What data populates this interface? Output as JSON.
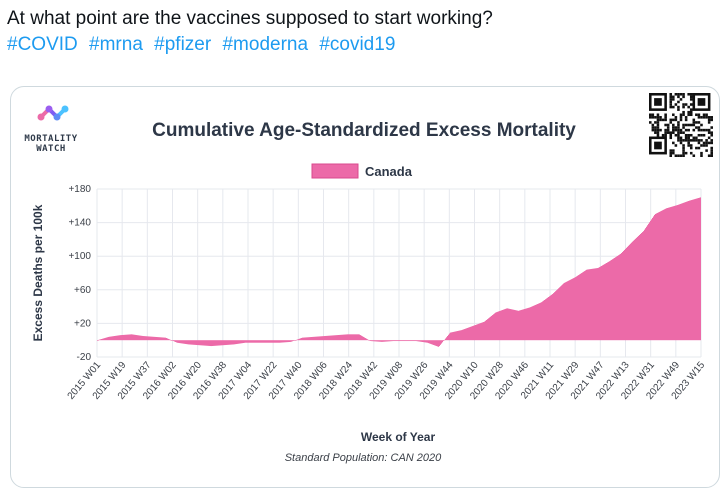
{
  "tweet": {
    "text": "At what point are the vaccines supposed to start working?",
    "hashtags": [
      "#COVID",
      "#mrna",
      "#pfizer",
      "#moderna",
      "#covid19"
    ]
  },
  "logo": {
    "line1": "MORTALITY",
    "line2": "WATCH"
  },
  "colors": {
    "series": "#ec6aa8",
    "series_stroke": "#d94a8e",
    "grid": "#e6e8ee",
    "text": "#2d3747",
    "link": "#1d9bf0"
  },
  "chart_data": {
    "type": "area",
    "title": "Cumulative Age-Standardized Excess Mortality",
    "legend": [
      "Canada"
    ],
    "legend_position": "top-center",
    "xlabel": "Week of Year",
    "ylabel": "Excess Deaths per 100k",
    "caption": "Standard Population: CAN 2020",
    "ylim": [
      -20,
      180
    ],
    "yticks": [
      -20,
      20,
      60,
      100,
      140,
      180
    ],
    "ytick_labels": [
      "-20",
      "+20",
      "+60",
      "+100",
      "+140",
      "+180"
    ],
    "x_tick_labels": [
      "2015 W01",
      "2015 W19",
      "2015 W37",
      "2016 W02",
      "2016 W20",
      "2016 W38",
      "2017 W04",
      "2017 W22",
      "2017 W40",
      "2018 W06",
      "2018 W24",
      "2018 W42",
      "2019 W08",
      "2019 W26",
      "2019 W44",
      "2020 W10",
      "2020 W28",
      "2020 W46",
      "2021 W11",
      "2021 W29",
      "2021 W47",
      "2022 W13",
      "2022 W31",
      "2022 W49",
      "2023 W15"
    ],
    "series": [
      {
        "name": "Canada",
        "values": [
          0,
          4,
          6,
          7,
          5,
          4,
          3,
          -3,
          -5,
          -6,
          -7,
          -6,
          -5,
          -3,
          -3,
          -3,
          -3,
          -2,
          3,
          4,
          5,
          6,
          7,
          7,
          -1,
          -2,
          -1,
          -1,
          -1,
          -3,
          -8,
          9,
          12,
          17,
          22,
          33,
          38,
          35,
          39,
          45,
          55,
          68,
          75,
          84,
          86,
          94,
          103,
          117,
          130,
          150,
          157,
          161,
          166,
          170
        ]
      }
    ]
  }
}
